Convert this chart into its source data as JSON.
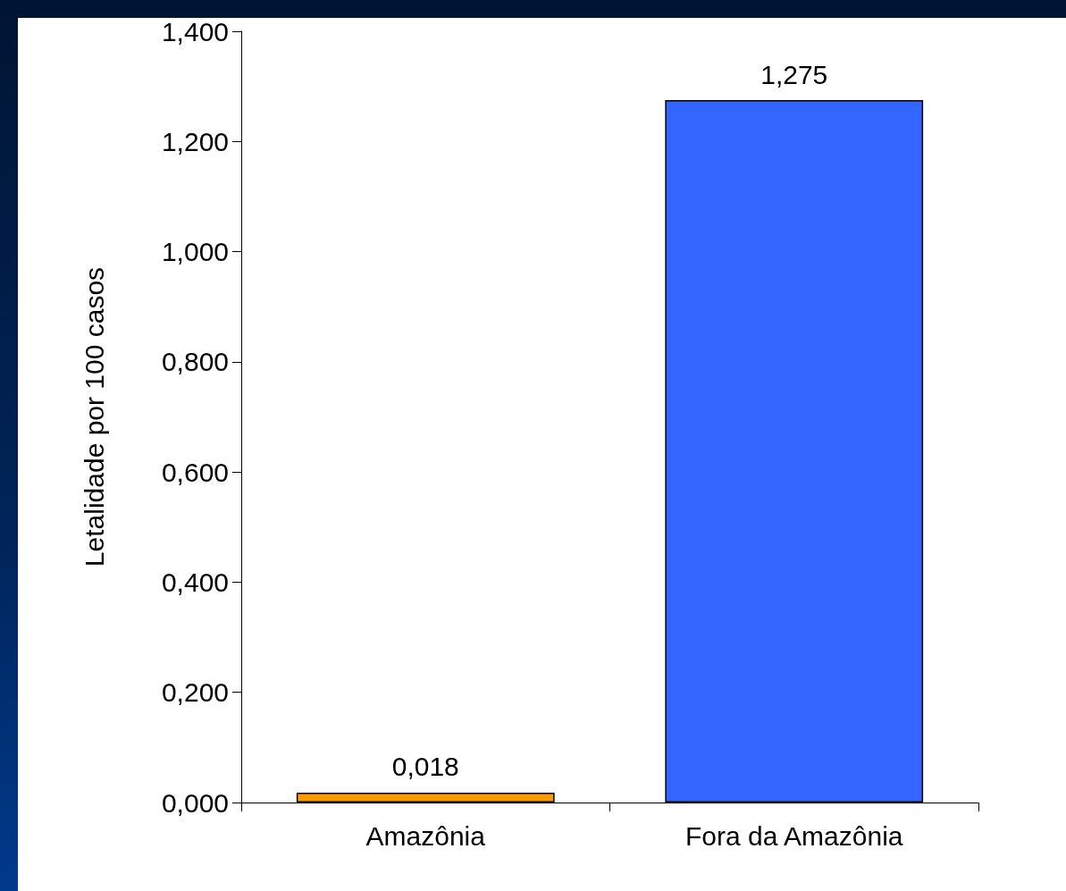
{
  "chart_data": {
    "type": "bar",
    "ylabel": "Letalidade por 100 casos",
    "categories": [
      "Amazônia",
      "Fora da Amazônia"
    ],
    "values": [
      0.018,
      1.275
    ],
    "colors": [
      "#ff9900",
      "#3366ff"
    ],
    "value_labels": [
      "0,018",
      "1,275"
    ],
    "ylim": [
      0,
      1.4
    ],
    "yticks": [
      {
        "value": 0,
        "label": "0,000"
      },
      {
        "value": 0.2,
        "label": "0,200"
      },
      {
        "value": 0.4,
        "label": "0,400"
      },
      {
        "value": 0.6,
        "label": "0,600"
      },
      {
        "value": 0.8,
        "label": "0,800"
      },
      {
        "value": 1.0,
        "label": "1,000"
      },
      {
        "value": 1.2,
        "label": "1,200"
      },
      {
        "value": 1.4,
        "label": "1,400"
      }
    ]
  }
}
